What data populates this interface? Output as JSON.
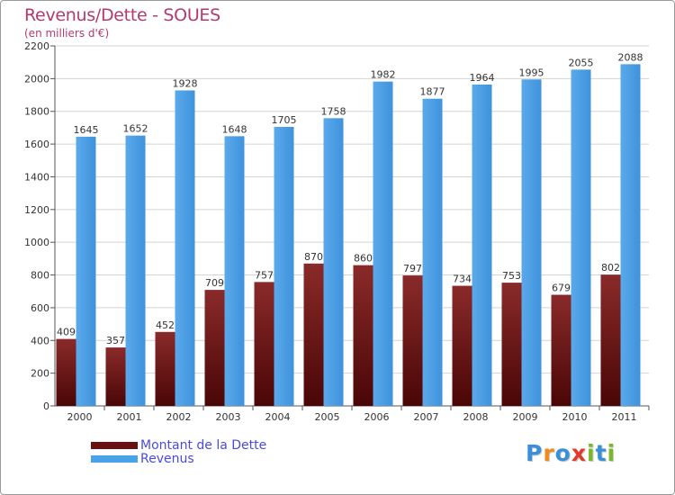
{
  "title": "Revenus/Dette - SOUES",
  "subtitle": "(en milliers d'€)",
  "chart_data": {
    "type": "bar",
    "categories": [
      "2000",
      "2001",
      "2002",
      "2003",
      "2004",
      "2005",
      "2006",
      "2007",
      "2008",
      "2009",
      "2010",
      "2011"
    ],
    "series": [
      {
        "name": "Montant de la Dette",
        "color": "#7a1a1a",
        "values": [
          409,
          357,
          452,
          709,
          757,
          870,
          860,
          797,
          734,
          753,
          679,
          802
        ]
      },
      {
        "name": "Revenus",
        "color": "#4aa3e8",
        "values": [
          1645,
          1652,
          1928,
          1648,
          1705,
          1758,
          1982,
          1877,
          1964,
          1995,
          2055,
          2088
        ]
      }
    ],
    "yticks": [
      "0",
      "200",
      "400",
      "600",
      "800",
      "1000",
      "1200",
      "1400",
      "1600",
      "1800",
      "2000",
      "2200"
    ],
    "ylim": [
      0,
      2200
    ],
    "grid": "horizontal",
    "legend_position": "bottom-left"
  },
  "legend": [
    {
      "label": "Montant de la Dette",
      "color": "#6b1010"
    },
    {
      "label": "Revenus",
      "color": "#4aa3e8"
    }
  ],
  "logo": {
    "letters": [
      "P",
      "r",
      "o",
      "x",
      "i",
      "t",
      "i"
    ],
    "colors": [
      "#3a8fd8",
      "#f08a1c",
      "#3a8fd8",
      "#e23a2a",
      "#7ab82a",
      "#3a8fd8",
      "#7ab82a"
    ]
  }
}
